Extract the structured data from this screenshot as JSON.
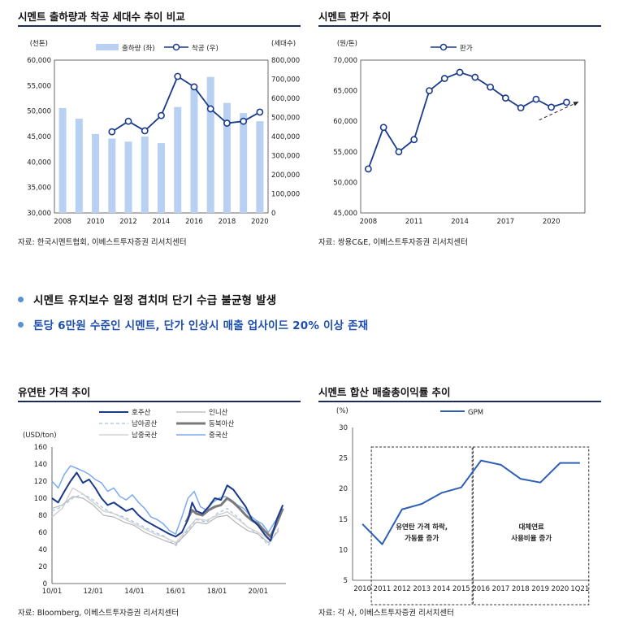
{
  "panels": [
    {
      "title": "시멘트 출하량과 착공 세대수 추이 비교",
      "source": "자료: 한국시멘트협회, 이베스트투자증권 리서치센터",
      "chart_data": {
        "type": "bar+line",
        "y_left_unit": "(천톤)",
        "y_right_unit": "(세대수)",
        "x_ticks": [
          "2008",
          "2010",
          "2012",
          "2014",
          "2016",
          "2018",
          "2020"
        ],
        "ylim_left": [
          30000,
          60000
        ],
        "ylim_right": [
          0,
          800000
        ],
        "y_left_ticks": [
          "30,000",
          "35,000",
          "40,000",
          "45,000",
          "50,000",
          "55,000",
          "60,000"
        ],
        "y_right_ticks": [
          "0",
          "100,000",
          "200,000",
          "300,000",
          "400,000",
          "500,000",
          "600,000",
          "700,000",
          "800,000"
        ],
        "series": [
          {
            "name": "출하량 (좌)",
            "axis": "left",
            "type": "bar",
            "color": "#b8d0f2",
            "x": [
              2008,
              2009,
              2010,
              2011,
              2012,
              2013,
              2014,
              2015,
              2016,
              2017,
              2018,
              2019,
              2020
            ],
            "values": [
              50600,
              48500,
              45500,
              44600,
              44000,
              45000,
              43700,
              50800,
              55000,
              56700,
              51600,
              49600,
              48000
            ]
          },
          {
            "name": "착공 (우)",
            "axis": "right",
            "type": "line",
            "color": "#1a3a8c",
            "x": [
              2011,
              2012,
              2013,
              2014,
              2015,
              2016,
              2017,
              2018,
              2019,
              2020
            ],
            "values": [
              425000,
              480000,
              430000,
              510000,
              715000,
              660000,
              545000,
              470000,
              480000,
              528000
            ]
          }
        ]
      }
    },
    {
      "title": "시멘트 판가 추이",
      "source": "자료: 쌍용C&E, 이베스트투자증권 리서치센터",
      "chart_data": {
        "type": "line",
        "y_unit": "(원/톤)",
        "x_ticks": [
          "2008",
          "2011",
          "2014",
          "2017",
          "2020"
        ],
        "ylim": [
          45000,
          70000
        ],
        "y_ticks": [
          "45,000",
          "50,000",
          "55,000",
          "60,000",
          "65,000",
          "70,000"
        ],
        "series": [
          {
            "name": "판가",
            "color": "#1a3a8c",
            "x": [
              2008,
              2009,
              2010,
              2011,
              2012,
              2013,
              2014,
              2015,
              2016,
              2017,
              2018,
              2019,
              2020,
              2021
            ],
            "values": [
              52200,
              59000,
              55000,
              57000,
              65000,
              67000,
              68000,
              67200,
              65600,
              63800,
              62200,
              63600,
              62300,
              63100
            ]
          }
        ],
        "trend_arrow": "dashed upward arrow"
      }
    },
    {
      "title": "유연탄 가격 추이",
      "source": "자료: Bloomberg, 이베스트투자증권 리서치센터",
      "chart_data": {
        "type": "line",
        "y_unit": "(USD/ton)",
        "x_ticks": [
          "10/01",
          "12/01",
          "14/01",
          "16/01",
          "18/01",
          "20/01"
        ],
        "ylim": [
          0,
          160
        ],
        "y_ticks": [
          "0",
          "20",
          "40",
          "60",
          "80",
          "100",
          "120",
          "140",
          "160"
        ],
        "series": [
          {
            "name": "호주산",
            "color": "#1a3a8c",
            "style": "solid",
            "width": 2,
            "x": [
              2010.0,
              2010.3,
              2010.6,
              2010.9,
              2011.2,
              2011.5,
              2011.8,
              2012.1,
              2012.4,
              2012.7,
              2013.0,
              2013.3,
              2013.6,
              2013.9,
              2014.2,
              2014.5,
              2014.8,
              2015.1,
              2015.4,
              2015.7,
              2016.0,
              2016.3,
              2016.6,
              2016.8,
              2017.0,
              2017.3,
              2017.6,
              2017.9,
              2018.2,
              2018.5,
              2018.8,
              2019.1,
              2019.4,
              2019.7,
              2020.0,
              2020.3,
              2020.6,
              2020.9,
              2021.2
            ],
            "values": [
              100,
              95,
              108,
              120,
              130,
              118,
              122,
              112,
              100,
              92,
              95,
              90,
              85,
              88,
              80,
              74,
              70,
              66,
              62,
              58,
              55,
              60,
              75,
              95,
              85,
              82,
              90,
              100,
              98,
              115,
              110,
              100,
              90,
              75,
              68,
              58,
              50,
              75,
              92
            ]
          },
          {
            "name": "인니산",
            "color": "#b4b4b4",
            "style": "solid",
            "width": 1.2,
            "x": [
              2010.0,
              2010.5,
              2011.0,
              2011.5,
              2012.0,
              2012.5,
              2013.0,
              2013.5,
              2014.0,
              2014.5,
              2015.0,
              2015.5,
              2016.0,
              2016.5,
              2017.0,
              2017.5,
              2018.0,
              2018.5,
              2019.0,
              2019.5,
              2020.0,
              2020.5,
              2021.0
            ],
            "values": [
              88,
              92,
              102,
              100,
              92,
              80,
              78,
              72,
              68,
              60,
              55,
              50,
              46,
              58,
              72,
              70,
              78,
              80,
              70,
              62,
              58,
              48,
              62
            ]
          },
          {
            "name": "남아공산",
            "color": "#9fc0ea",
            "style": "dashed",
            "width": 1.2,
            "x": [
              2010.0,
              2010.5,
              2011.0,
              2011.5,
              2012.0,
              2012.5,
              2013.0,
              2013.5,
              2014.0,
              2014.5,
              2015.0,
              2015.5,
              2016.0,
              2016.5,
              2017.0,
              2017.5,
              2018.0,
              2018.5,
              2019.0,
              2019.5,
              2020.0,
              2020.5,
              2021.0
            ],
            "values": [
              85,
              90,
              100,
              105,
              98,
              88,
              82,
              78,
              72,
              66,
              60,
              55,
              44,
              60,
              75,
              72,
              82,
              88,
              78,
              66,
              58,
              45,
              65
            ]
          },
          {
            "name": "동북아산",
            "color": "#7a7a7a",
            "style": "solid",
            "width": 3,
            "x": [
              2016.5,
              2016.8,
              2017.0,
              2017.3,
              2017.6,
              2017.9,
              2018.2,
              2018.5,
              2018.8,
              2019.1,
              2019.4,
              2019.7,
              2020.0,
              2020.3,
              2020.6,
              2020.9,
              2021.2
            ],
            "values": [
              72,
              86,
              82,
              80,
              86,
              90,
              92,
              100,
              95,
              88,
              80,
              74,
              70,
              62,
              55,
              70,
              88
            ]
          },
          {
            "name": "남중국산",
            "color": "#d2d2d2",
            "style": "solid",
            "width": 1.5,
            "x": [
              2010.0,
              2010.5,
              2011.0,
              2011.5,
              2012.0,
              2012.5,
              2013.0,
              2013.5,
              2014.0,
              2014.5,
              2015.0,
              2015.5,
              2016.0,
              2016.5,
              2017.0,
              2017.5,
              2018.0,
              2018.5,
              2019.0,
              2019.5,
              2020.0,
              2020.5,
              2021.0
            ],
            "values": [
              78,
              88,
              112,
              105,
              95,
              85,
              82,
              76,
              70,
              64,
              58,
              54,
              48,
              62,
              76,
              74,
              80,
              84,
              76,
              66,
              60,
              52,
              78
            ]
          },
          {
            "name": "중국산",
            "color": "#7aaaf0",
            "style": "solid",
            "width": 1.5,
            "x": [
              2010.0,
              2010.3,
              2010.6,
              2010.9,
              2011.2,
              2011.5,
              2011.8,
              2012.1,
              2012.4,
              2012.7,
              2013.0,
              2013.3,
              2013.6,
              2013.9,
              2014.2,
              2014.5,
              2014.8,
              2015.1,
              2015.4,
              2015.7,
              2016.0,
              2016.3,
              2016.6,
              2016.9,
              2017.2,
              2017.5,
              2017.8,
              2018.1,
              2018.4,
              2018.7,
              2019.0,
              2019.3,
              2019.6,
              2019.9,
              2020.2,
              2020.5,
              2020.8,
              2021.1
            ],
            "values": [
              120,
              112,
              128,
              138,
              135,
              132,
              128,
              122,
              118,
              108,
              112,
              102,
              98,
              104,
              95,
              88,
              78,
              75,
              70,
              62,
              58,
              78,
              100,
              108,
              90,
              86,
              95,
              100,
              102,
              98,
              92,
              88,
              80,
              74,
              70,
              60,
              72,
              80
            ]
          }
        ]
      }
    },
    {
      "title": "시멘트 합산 매출총이익률 추이",
      "source": "자료: 각 사, 이베스트투자증권 리서치센터",
      "chart_data": {
        "type": "line",
        "y_unit": "(%)",
        "categories": [
          "2010",
          "2011",
          "2012",
          "2013",
          "2014",
          "2015",
          "2016",
          "2017",
          "2018",
          "2019",
          "2020",
          "1Q21"
        ],
        "ylim": [
          5,
          30
        ],
        "y_ticks": [
          "5",
          "10",
          "15",
          "20",
          "25",
          "30"
        ],
        "series": [
          {
            "name": "GPM",
            "color": "#2e5fb8",
            "values": [
              14.2,
              10.9,
              16.6,
              17.5,
              19.3,
              20.2,
              24.6,
              23.9,
              21.6,
              21.0,
              24.2,
              24.2
            ]
          }
        ],
        "annotations": [
          "유연탄 가격 하락,\n가동률 증가",
          "대체연료\n사용비율 증가"
        ]
      }
    }
  ],
  "bullets": [
    {
      "text": "시멘트 유지보수 일정 겹치며 단기 수급 불균형 발생",
      "color": "#111111"
    },
    {
      "text": "톤당 6만원 수준인 시멘트, 단가 인상시 매출 업사이드 20% 이상 존재",
      "color": "#1e4fae"
    }
  ]
}
